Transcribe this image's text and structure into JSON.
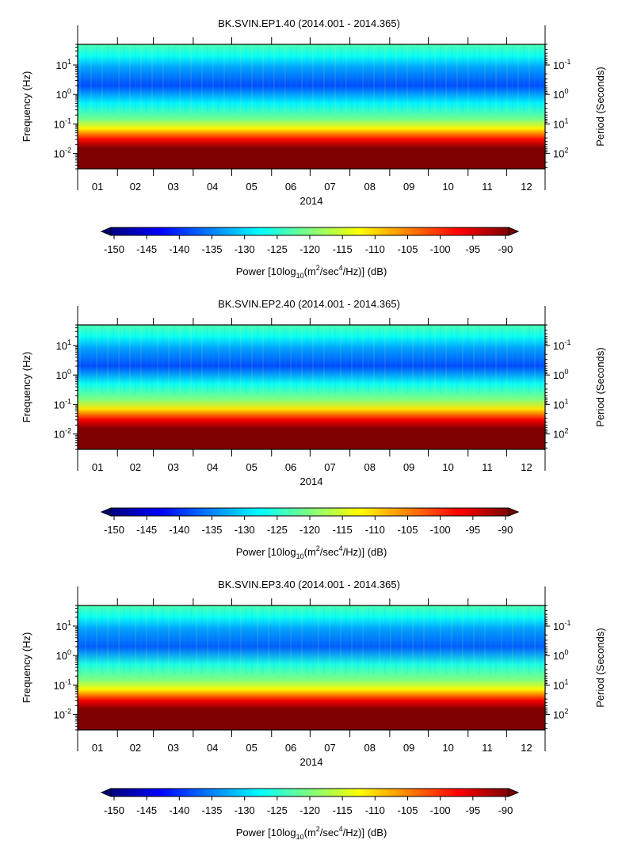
{
  "chart_data": [
    {
      "type": "heatmap",
      "title": "BK.SVIN.EP1.40 (2014.001 - 2014.365)",
      "xlabel": "2014",
      "ylabel_left": "Frequency (Hz)",
      "ylabel_right": "Period (Seconds)",
      "x_ticks": [
        "01",
        "02",
        "03",
        "04",
        "05",
        "06",
        "07",
        "08",
        "09",
        "10",
        "11",
        "12"
      ],
      "y_ticks_left": [
        {
          "base": "10",
          "exp": "1"
        },
        {
          "base": "10",
          "exp": "0"
        },
        {
          "base": "10",
          "exp": "-1"
        },
        {
          "base": "10",
          "exp": "-2"
        }
      ],
      "y_ticks_right": [
        {
          "base": "10",
          "exp": "-1"
        },
        {
          "base": "10",
          "exp": "0"
        },
        {
          "base": "10",
          "exp": "1"
        },
        {
          "base": "10",
          "exp": "2"
        }
      ],
      "frequency_range_hz": [
        0.003,
        50
      ],
      "day_range": [
        1,
        365
      ],
      "spectral_profile": [
        {
          "freq_hz": 50,
          "power_db": -123
        },
        {
          "freq_hz": 20,
          "power_db": -127
        },
        {
          "freq_hz": 8,
          "power_db": -133
        },
        {
          "freq_hz": 2,
          "power_db": -138
        },
        {
          "freq_hz": 0.5,
          "power_db": -128
        },
        {
          "freq_hz": 0.15,
          "power_db": -121
        },
        {
          "freq_hz": 0.07,
          "power_db": -112
        },
        {
          "freq_hz": 0.03,
          "power_db": -98
        },
        {
          "freq_hz": 0.015,
          "power_db": -90
        },
        {
          "freq_hz": 0.003,
          "power_db": -90
        }
      ],
      "colorbar": {
        "ticks": [
          "-150",
          "-145",
          "-140",
          "-135",
          "-130",
          "-125",
          "-120",
          "-115",
          "-110",
          "-105",
          "-100",
          "-95",
          "-90"
        ],
        "label_prefix": "Power [10log",
        "label_sub": "10",
        "label_mid": "(m",
        "label_sup1": "2",
        "label_mid2": "/sec",
        "label_sup2": "4",
        "label_suffix": "/Hz)] (dB)"
      }
    },
    {
      "type": "heatmap",
      "title": "BK.SVIN.EP2.40 (2014.001 - 2014.365)",
      "xlabel": "2014",
      "ylabel_left": "Frequency (Hz)",
      "ylabel_right": "Period (Seconds)",
      "x_ticks": [
        "01",
        "02",
        "03",
        "04",
        "05",
        "06",
        "07",
        "08",
        "09",
        "10",
        "11",
        "12"
      ],
      "y_ticks_left": [
        {
          "base": "10",
          "exp": "1"
        },
        {
          "base": "10",
          "exp": "0"
        },
        {
          "base": "10",
          "exp": "-1"
        },
        {
          "base": "10",
          "exp": "-2"
        }
      ],
      "y_ticks_right": [
        {
          "base": "10",
          "exp": "-1"
        },
        {
          "base": "10",
          "exp": "0"
        },
        {
          "base": "10",
          "exp": "1"
        },
        {
          "base": "10",
          "exp": "2"
        }
      ],
      "frequency_range_hz": [
        0.003,
        50
      ],
      "day_range": [
        1,
        365
      ],
      "spectral_profile": [
        {
          "freq_hz": 50,
          "power_db": -123
        },
        {
          "freq_hz": 20,
          "power_db": -127
        },
        {
          "freq_hz": 8,
          "power_db": -133
        },
        {
          "freq_hz": 2,
          "power_db": -138
        },
        {
          "freq_hz": 0.5,
          "power_db": -127
        },
        {
          "freq_hz": 0.15,
          "power_db": -120
        },
        {
          "freq_hz": 0.07,
          "power_db": -111
        },
        {
          "freq_hz": 0.03,
          "power_db": -97
        },
        {
          "freq_hz": 0.015,
          "power_db": -90
        },
        {
          "freq_hz": 0.003,
          "power_db": -90
        }
      ],
      "colorbar": {
        "ticks": [
          "-150",
          "-145",
          "-140",
          "-135",
          "-130",
          "-125",
          "-120",
          "-115",
          "-110",
          "-105",
          "-100",
          "-95",
          "-90"
        ],
        "label_prefix": "Power [10log",
        "label_sub": "10",
        "label_mid": "(m",
        "label_sup1": "2",
        "label_mid2": "/sec",
        "label_sup2": "4",
        "label_suffix": "/Hz)] (dB)"
      }
    },
    {
      "type": "heatmap",
      "title": "BK.SVIN.EP3.40 (2014.001 - 2014.365)",
      "xlabel": "2014",
      "ylabel_left": "Frequency (Hz)",
      "ylabel_right": "Period (Seconds)",
      "x_ticks": [
        "01",
        "02",
        "03",
        "04",
        "05",
        "06",
        "07",
        "08",
        "09",
        "10",
        "11",
        "12"
      ],
      "y_ticks_left": [
        {
          "base": "10",
          "exp": "1"
        },
        {
          "base": "10",
          "exp": "0"
        },
        {
          "base": "10",
          "exp": "-1"
        },
        {
          "base": "10",
          "exp": "-2"
        }
      ],
      "y_ticks_right": [
        {
          "base": "10",
          "exp": "-1"
        },
        {
          "base": "10",
          "exp": "0"
        },
        {
          "base": "10",
          "exp": "1"
        },
        {
          "base": "10",
          "exp": "2"
        }
      ],
      "frequency_range_hz": [
        0.003,
        50
      ],
      "day_range": [
        1,
        365
      ],
      "spectral_profile": [
        {
          "freq_hz": 50,
          "power_db": -123
        },
        {
          "freq_hz": 20,
          "power_db": -127
        },
        {
          "freq_hz": 8,
          "power_db": -133
        },
        {
          "freq_hz": 2,
          "power_db": -137
        },
        {
          "freq_hz": 0.5,
          "power_db": -126
        },
        {
          "freq_hz": 0.15,
          "power_db": -120
        },
        {
          "freq_hz": 0.07,
          "power_db": -112
        },
        {
          "freq_hz": 0.03,
          "power_db": -97
        },
        {
          "freq_hz": 0.015,
          "power_db": -90
        },
        {
          "freq_hz": 0.003,
          "power_db": -90
        }
      ],
      "colorbar": {
        "ticks": [
          "-150",
          "-145",
          "-140",
          "-135",
          "-130",
          "-125",
          "-120",
          "-115",
          "-110",
          "-105",
          "-100",
          "-95",
          "-90"
        ],
        "label_prefix": "Power [10log",
        "label_sub": "10",
        "label_mid": "(m",
        "label_sup1": "2",
        "label_mid2": "/sec",
        "label_sup2": "4",
        "label_suffix": "/Hz)] (dB)"
      }
    }
  ],
  "colormap": [
    "#00007f",
    "#0000ff",
    "#007fff",
    "#00ffff",
    "#7fff7f",
    "#ffff00",
    "#ff7f00",
    "#ff0000",
    "#7f0000"
  ],
  "colormap_range_db": [
    -150,
    -90
  ]
}
